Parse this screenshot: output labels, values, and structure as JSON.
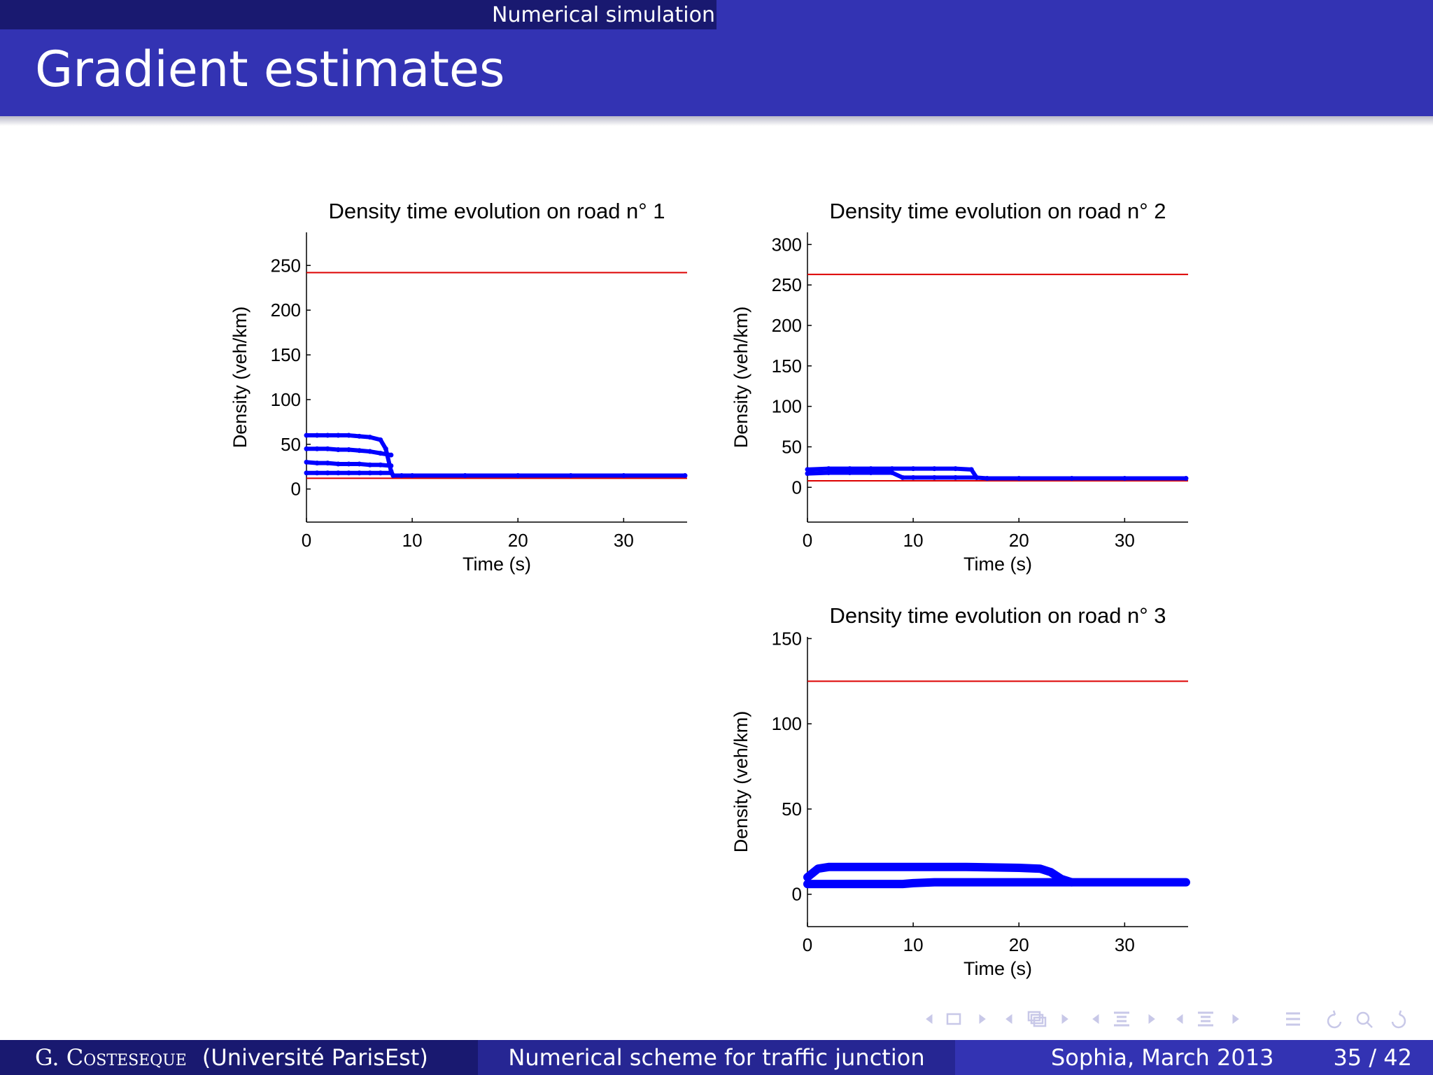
{
  "header": {
    "section": "Numerical simulation",
    "title": "Gradient estimates"
  },
  "footer": {
    "author": "G. Costeseque",
    "affiliation": "(Université ParisEst)",
    "talk_title": "Numerical scheme for traffic junction",
    "place_date": "Sophia, March 2013",
    "page": "35 / 42"
  },
  "colors": {
    "dark": "#191970",
    "accent": "#3333b3",
    "data": "#0000ff",
    "bound": "#dd0000"
  },
  "nav_icons": [
    "triangle-left-icon",
    "frame-icon",
    "triangle-right-icon",
    "triangle-left-icon",
    "subsection-icon",
    "triangle-right-icon",
    "triangle-left-icon",
    "section-icon",
    "triangle-right-icon",
    "triangle-left-icon",
    "section-icon",
    "triangle-right-icon",
    "align-icon",
    "search-icon",
    "undo-icon"
  ],
  "chart_data": [
    {
      "type": "scatter",
      "title": "Density time evolution on road n° 1",
      "xlabel": "Time (s)",
      "ylabel": "Density (veh/km)",
      "xlim": [
        0,
        36
      ],
      "ylim": [
        -37,
        287
      ],
      "xticks": [
        0,
        10,
        20,
        30
      ],
      "yticks": [
        0,
        50,
        100,
        150,
        200,
        250
      ],
      "reference_lines": [
        242,
        12
      ],
      "series": [
        {
          "x": [
            0,
            1,
            2,
            3,
            4,
            5,
            6,
            7,
            7.5,
            8,
            8.2,
            9,
            10,
            15,
            20,
            25,
            30,
            35.8
          ],
          "y": [
            60,
            60,
            60,
            60,
            60,
            59,
            58,
            55,
            45,
            20,
            15,
            15,
            15,
            15,
            15,
            15,
            15,
            15
          ]
        },
        {
          "x": [
            0,
            1,
            2,
            3,
            4,
            5,
            6,
            7,
            8
          ],
          "y": [
            45,
            45,
            45,
            44,
            44,
            43,
            42,
            40,
            38
          ]
        },
        {
          "x": [
            0,
            1,
            2,
            3,
            4,
            5,
            6,
            7,
            8
          ],
          "y": [
            30,
            29,
            29,
            28,
            28,
            28,
            27,
            27,
            26
          ]
        },
        {
          "x": [
            0,
            1,
            2,
            3,
            4,
            5,
            6,
            7,
            8
          ],
          "y": [
            18,
            18,
            18,
            18,
            18,
            18,
            18,
            18,
            18
          ]
        }
      ]
    },
    {
      "type": "scatter",
      "title": "Density time evolution on road n° 2",
      "xlabel": "Time (s)",
      "ylabel": "Density (veh/km)",
      "xlim": [
        0,
        36
      ],
      "ylim": [
        -43,
        315
      ],
      "xticks": [
        0,
        10,
        20,
        30
      ],
      "yticks": [
        0,
        50,
        100,
        150,
        200,
        250,
        300
      ],
      "reference_lines": [
        263,
        8
      ],
      "series": [
        {
          "x": [
            0,
            2,
            4,
            6,
            8,
            10,
            12,
            14,
            15.5,
            16,
            17,
            20,
            25,
            30,
            35.8
          ],
          "y": [
            22,
            23,
            23,
            23,
            23,
            23,
            23,
            23,
            22,
            12,
            11,
            11,
            11,
            11,
            11
          ]
        },
        {
          "x": [
            0,
            2,
            4,
            6,
            8,
            9,
            10,
            12,
            14,
            16
          ],
          "y": [
            17,
            18,
            18,
            18,
            18,
            12,
            12,
            12,
            12,
            12
          ]
        }
      ]
    },
    {
      "type": "scatter",
      "title": "Density time evolution on road n° 3",
      "xlabel": "Time (s)",
      "ylabel": "Density (veh/km)",
      "xlim": [
        0,
        36
      ],
      "ylim": [
        -19,
        151
      ],
      "xticks": [
        0,
        10,
        20,
        30
      ],
      "yticks": [
        0,
        50,
        100,
        150
      ],
      "reference_lines": [
        125,
        5.5
      ],
      "series": [
        {
          "x": [
            0,
            1,
            2,
            5,
            10,
            15,
            20,
            22,
            23,
            24,
            25,
            30,
            35.8
          ],
          "y": [
            10,
            15,
            16,
            16,
            16,
            16,
            15.5,
            15,
            13,
            9,
            7,
            7,
            7
          ]
        },
        {
          "x": [
            0,
            5,
            9,
            10,
            12,
            15,
            20,
            25
          ],
          "y": [
            6,
            6,
            6,
            6.5,
            7,
            7,
            7,
            7
          ]
        }
      ]
    }
  ]
}
